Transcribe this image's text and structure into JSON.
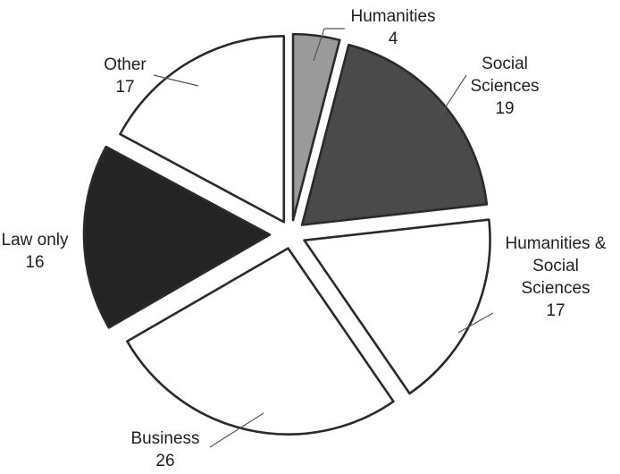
{
  "chart_data": {
    "type": "pie",
    "slices": [
      {
        "label": [
          "Humanities"
        ],
        "value": 4,
        "color": "#9a9a9a"
      },
      {
        "label": [
          "Social",
          "Sciences"
        ],
        "value": 19,
        "color": "#4a4a4a"
      },
      {
        "label": [
          "Humanities &",
          "Social",
          "Sciences"
        ],
        "value": 17,
        "color": "#ffffff"
      },
      {
        "label": [
          "Business"
        ],
        "value": 26,
        "color": "#ffffff"
      },
      {
        "label": [
          "Law only"
        ],
        "value": 16,
        "color": "#242424"
      },
      {
        "label": [
          "Other"
        ],
        "value": 17,
        "color": "#ffffff"
      }
    ],
    "start": "top",
    "direction": "clockwise",
    "exploded": true
  }
}
